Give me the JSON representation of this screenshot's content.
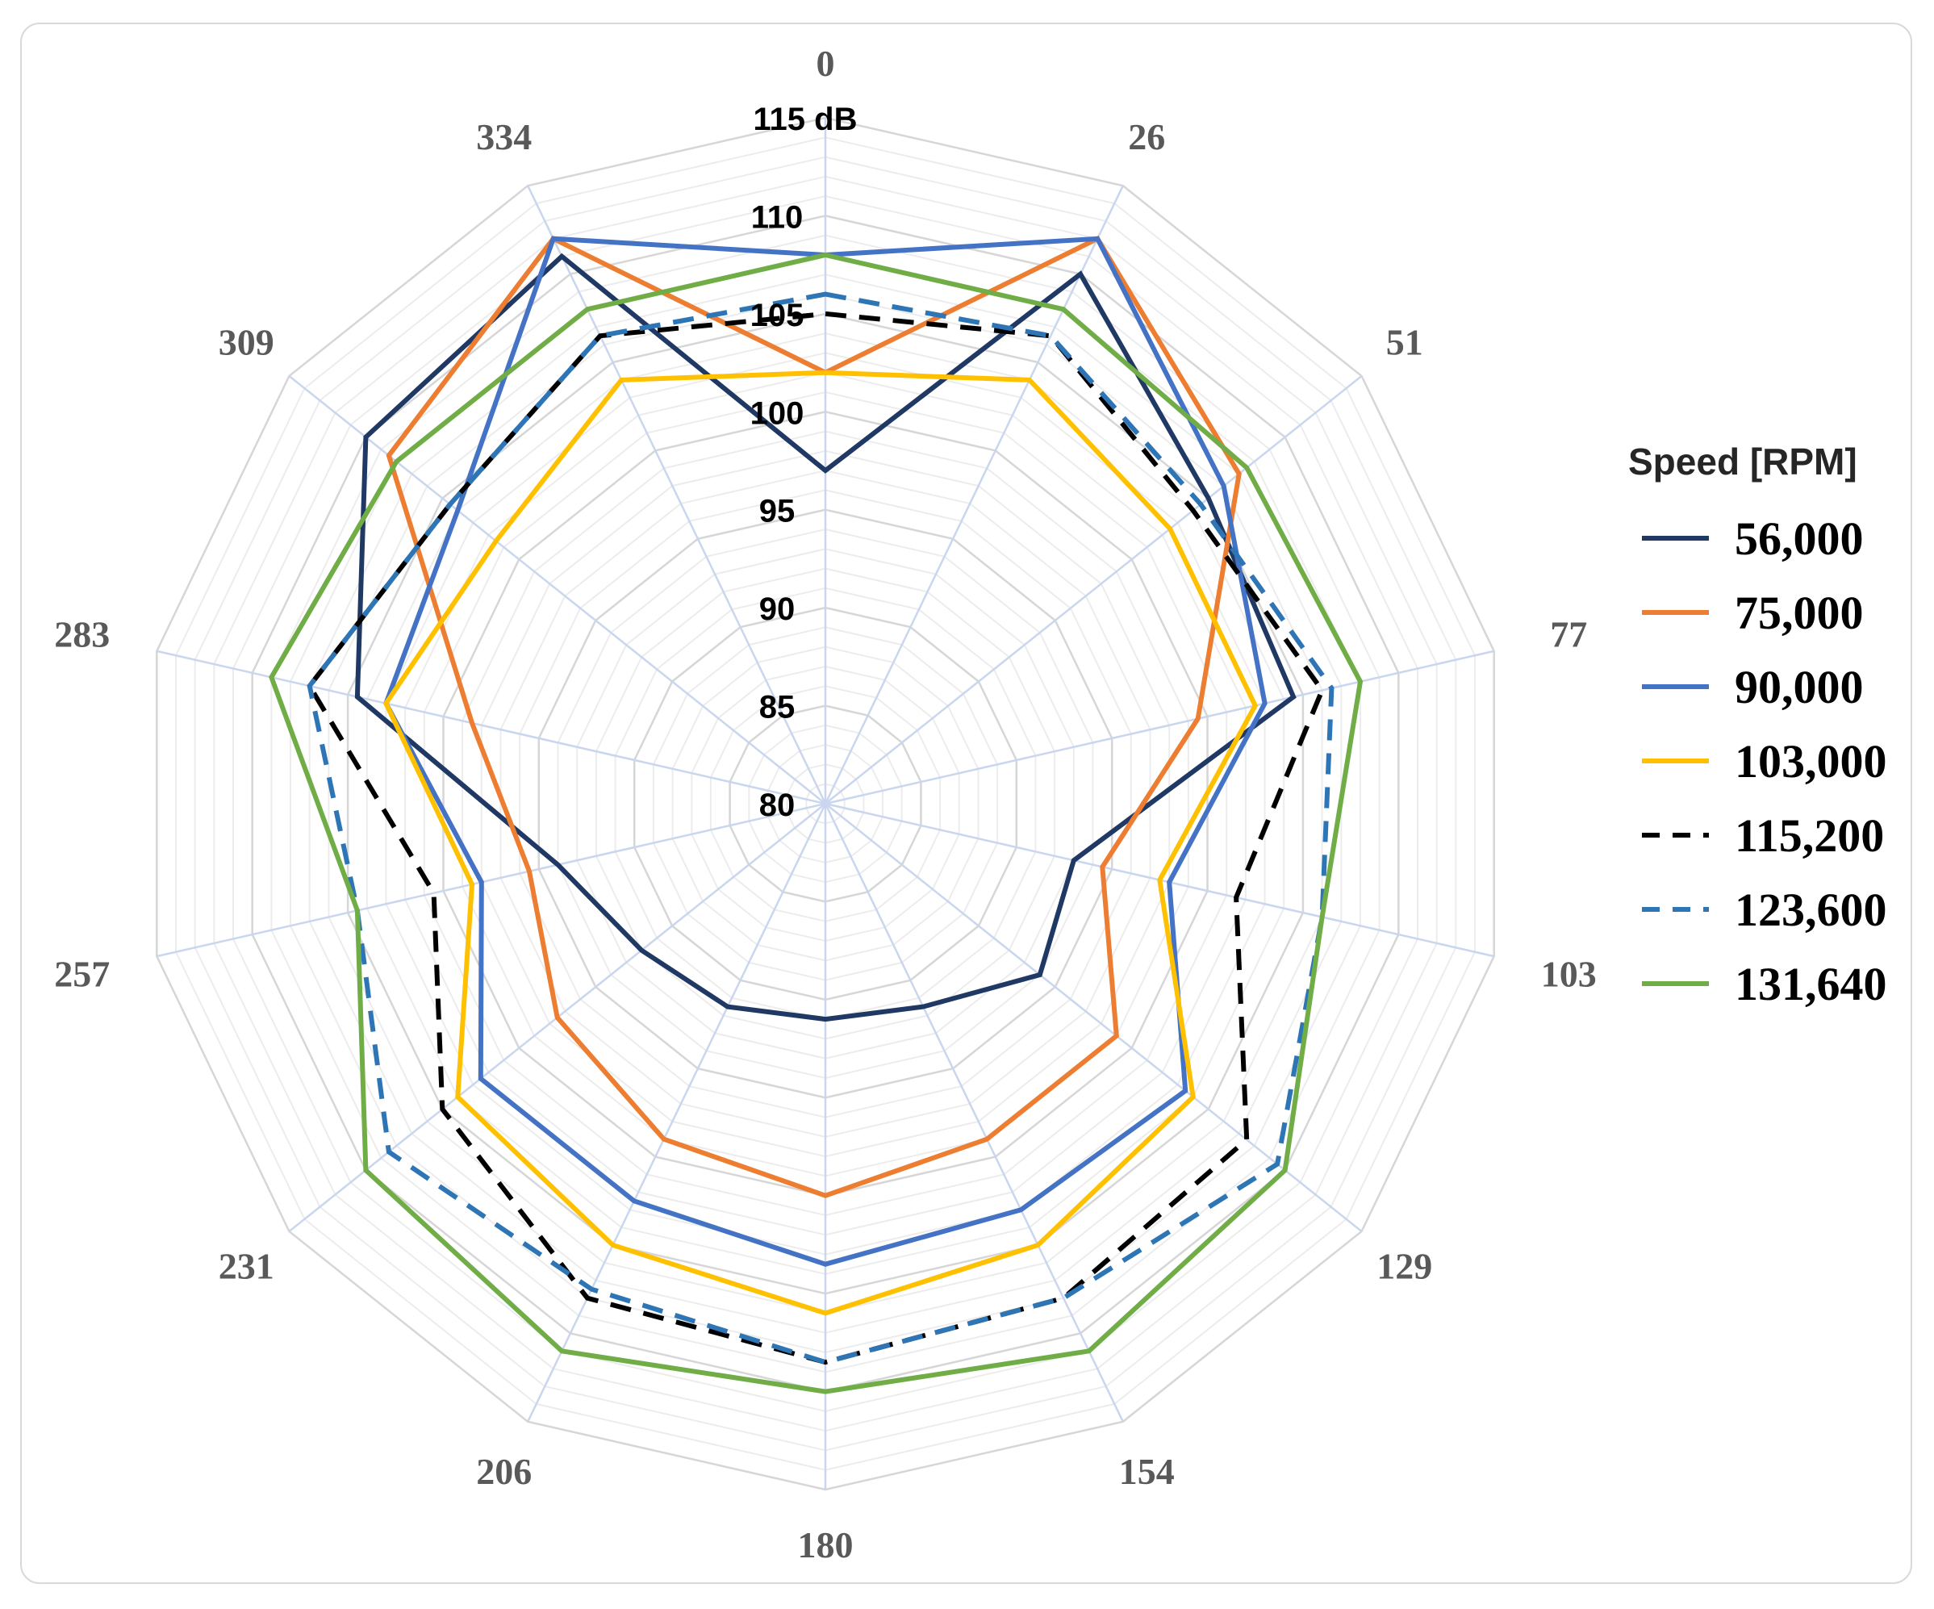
{
  "chart_data": {
    "type": "radar",
    "title": "",
    "unit": "dB",
    "radial_range": [
      80,
      115
    ],
    "radial_ticks": [
      "80",
      "85",
      "90",
      "95",
      "100",
      "105",
      "110",
      "115 dB"
    ],
    "radial_tick_values": [
      80,
      85,
      90,
      95,
      100,
      105,
      110,
      115
    ],
    "minor_step": 1,
    "angles": [
      "0",
      "26",
      "51",
      "77",
      "103",
      "129",
      "154",
      "180",
      "206",
      "231",
      "257",
      "283",
      "309",
      "334"
    ],
    "legend_title": "Speed [RPM]",
    "legend_position": "right",
    "series": [
      {
        "name": "56,000",
        "color": "#1f3864",
        "dash": "solid",
        "values": [
          97.0,
          110.0,
          105.0,
          104.5,
          93.0,
          94.0,
          91.5,
          91.0,
          91.5,
          92.0,
          94.0,
          104.5,
          110.0,
          111.0
        ]
      },
      {
        "name": "75,000",
        "color": "#ed7d31",
        "dash": "solid",
        "values": [
          102.0,
          112.0,
          107.0,
          99.5,
          94.5,
          99.0,
          99.0,
          100.0,
          99.0,
          97.5,
          95.5,
          98.5,
          108.5,
          112.0
        ]
      },
      {
        "name": "90,000",
        "color": "#4472c4",
        "dash": "solid",
        "values": [
          108.0,
          112.0,
          106.0,
          103.0,
          98.0,
          103.5,
          103.0,
          103.5,
          102.5,
          102.5,
          98.0,
          103.0,
          104.0,
          112.0
        ]
      },
      {
        "name": "103,000",
        "color": "#ffc000",
        "dash": "solid",
        "values": [
          102.0,
          104.0,
          102.5,
          102.5,
          97.5,
          104.0,
          105.0,
          106.0,
          105.0,
          104.0,
          98.5,
          103.0,
          101.5,
          104.0
        ]
      },
      {
        "name": "115,200",
        "color": "#000000",
        "dash": "dashed",
        "values": [
          105.0,
          106.5,
          104.0,
          106.0,
          101.5,
          107.5,
          108.0,
          108.5,
          108.0,
          105.0,
          100.5,
          107.0,
          104.5,
          106.5
        ]
      },
      {
        "name": "123,600",
        "color": "#2e75b6",
        "dash": "dashed",
        "values": [
          106.0,
          106.5,
          104.5,
          106.5,
          106.0,
          109.5,
          108.0,
          108.5,
          107.5,
          108.5,
          104.5,
          107.0,
          104.5,
          106.5
        ]
      },
      {
        "name": "131,640",
        "color": "#70ad47",
        "dash": "solid",
        "values": [
          108.0,
          108.0,
          107.5,
          108.0,
          106.0,
          110.0,
          111.0,
          110.0,
          111.0,
          110.0,
          104.5,
          109.0,
          108.0,
          108.0
        ]
      }
    ]
  }
}
